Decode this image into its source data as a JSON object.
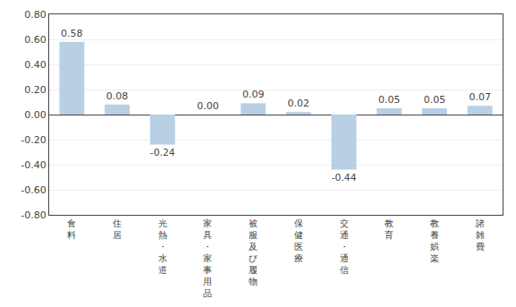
{
  "chart_data": {
    "type": "bar",
    "categories": [
      "食料",
      "住居",
      "光熱・水道",
      "家具・家事用品",
      "被服及び履物",
      "保健医療",
      "交通・通信",
      "教育",
      "教養娯楽",
      "諸雑費"
    ],
    "values": [
      0.58,
      0.08,
      -0.24,
      0.0,
      0.09,
      0.02,
      -0.44,
      0.05,
      0.05,
      0.07
    ],
    "value_labels": [
      "0.58",
      "0.08",
      "-0.24",
      "0.00",
      "0.09",
      "0.02",
      "-0.44",
      "0.05",
      "0.05",
      "0.07"
    ],
    "data_labels": true,
    "color": "#b8cfe4",
    "ylim": [
      -0.8,
      0.8
    ],
    "yticks": [
      {
        "value": -0.8,
        "label": "-0.80"
      },
      {
        "value": -0.6,
        "label": "-0.60"
      },
      {
        "value": -0.4,
        "label": "-0.40"
      },
      {
        "value": -0.2,
        "label": "-0.20"
      },
      {
        "value": 0.0,
        "label": "0.00"
      },
      {
        "value": 0.2,
        "label": "0.20"
      },
      {
        "value": 0.4,
        "label": "0.40"
      },
      {
        "value": 0.6,
        "label": "0.60"
      },
      {
        "value": 0.8,
        "label": "0.80"
      }
    ],
    "grid": true
  }
}
